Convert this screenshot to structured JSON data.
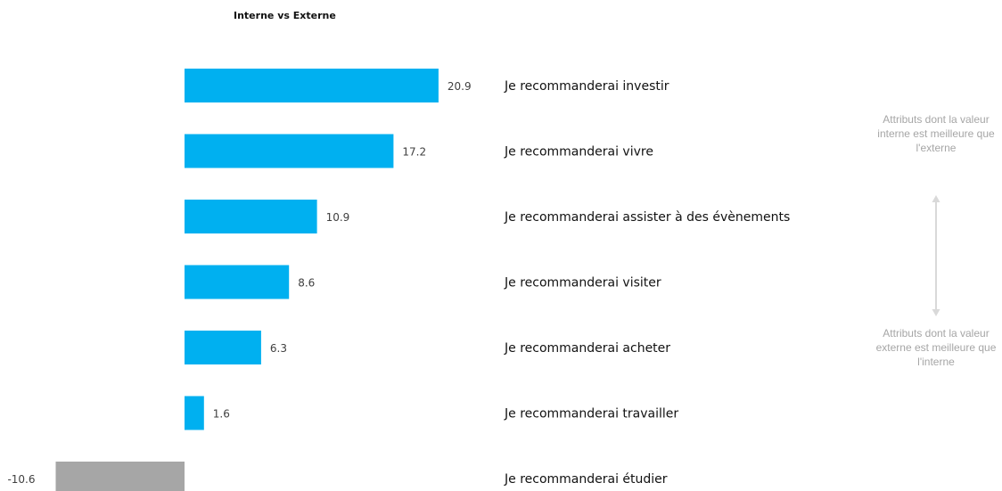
{
  "chart_data": {
    "type": "bar",
    "orientation": "horizontal",
    "title": "Interne vs Externe",
    "categories": [
      "Je recommanderai investir",
      "Je recommanderai vivre",
      "Je recommanderai assister à des évènements",
      "Je recommanderai visiter",
      "Je recommanderai acheter",
      "Je recommanderai travailler",
      "Je recommanderai étudier"
    ],
    "values": [
      20.9,
      17.2,
      10.9,
      8.6,
      6.3,
      1.6,
      -10.6
    ],
    "value_labels": [
      "20.9",
      "17.2",
      "10.9",
      "8.6",
      "6.3",
      "1.6",
      "-10.6"
    ],
    "colors": {
      "positive": "#00b0f0",
      "negative": "#a6a6a6",
      "annotation": "#a6a6a6"
    }
  },
  "annotations": {
    "top": "Attributs dont la valeur interne est meilleure que l'externe",
    "bottom": "Attributs dont la valeur externe est meilleure que l'interne"
  }
}
